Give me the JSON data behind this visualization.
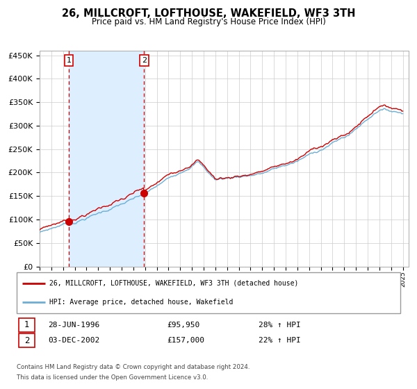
{
  "title": "26, MILLCROFT, LOFTHOUSE, WAKEFIELD, WF3 3TH",
  "subtitle": "Price paid vs. HM Land Registry's House Price Index (HPI)",
  "legend_line1": "26, MILLCROFT, LOFTHOUSE, WAKEFIELD, WF3 3TH (detached house)",
  "legend_line2": "HPI: Average price, detached house, Wakefield",
  "table_rows": [
    {
      "num": "1",
      "date": "28-JUN-1996",
      "price": "£95,950",
      "pct": "28% ↑ HPI"
    },
    {
      "num": "2",
      "date": "03-DEC-2002",
      "price": "£157,000",
      "pct": "22% ↑ HPI"
    }
  ],
  "footnote1": "Contains HM Land Registry data © Crown copyright and database right 2024.",
  "footnote2": "This data is licensed under the Open Government Licence v3.0.",
  "sale1_year": 1996.49,
  "sale1_price": 95950,
  "sale2_year": 2002.92,
  "sale2_price": 157000,
  "hpi_color": "#6baed6",
  "hpi_adjusted_color": "#cc0000",
  "highlight_bg": "#ddeeff",
  "dashed_line_color": "#cc0000",
  "ylim_max": 460000,
  "xlim_min": 1994.0,
  "xlim_max": 2025.5
}
